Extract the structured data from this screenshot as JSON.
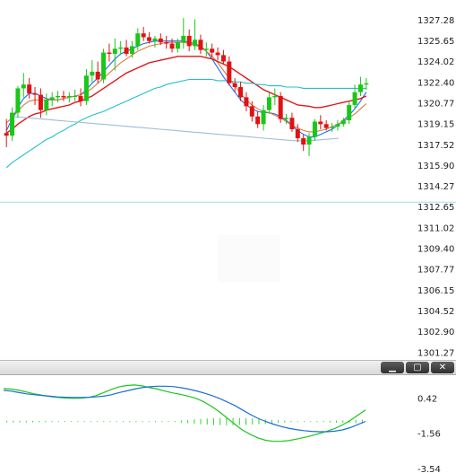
{
  "chart_data": [
    {
      "type": "candlestick",
      "title": "",
      "y_ticks": [
        "1327.28",
        "1325.65",
        "1324.02",
        "1322.40",
        "1320.77",
        "1319.15",
        "1317.52",
        "1315.90",
        "1314.27",
        "1312.65",
        "1311.02",
        "1309.40",
        "1307.77",
        "1306.15",
        "1304.52",
        "1302.90",
        "1301.27"
      ],
      "ylim": [
        1300.8,
        1328.6
      ],
      "reference_line": 1313.0,
      "candles": [
        [
          1318.4,
          1319.5,
          1317.3,
          1318.2
        ],
        [
          1318.2,
          1320.4,
          1317.8,
          1320.0
        ],
        [
          1320.0,
          1322.1,
          1319.6,
          1321.9
        ],
        [
          1321.9,
          1323.1,
          1321.2,
          1322.2
        ],
        [
          1322.2,
          1322.7,
          1321.1,
          1321.5
        ],
        [
          1321.5,
          1322.0,
          1320.6,
          1321.4
        ],
        [
          1321.4,
          1321.9,
          1319.6,
          1320.2
        ],
        [
          1320.2,
          1321.5,
          1319.8,
          1321.0
        ],
        [
          1321.0,
          1321.6,
          1320.5,
          1321.2
        ],
        [
          1321.2,
          1321.7,
          1320.8,
          1321.3
        ],
        [
          1321.3,
          1321.7,
          1320.9,
          1321.2
        ],
        [
          1321.2,
          1321.6,
          1320.8,
          1321.3
        ],
        [
          1321.3,
          1321.8,
          1320.9,
          1321.3
        ],
        [
          1321.3,
          1321.9,
          1320.5,
          1320.9
        ],
        [
          1320.9,
          1323.4,
          1320.6,
          1322.9
        ],
        [
          1322.9,
          1324.1,
          1322.4,
          1323.2
        ],
        [
          1323.2,
          1324.0,
          1322.3,
          1322.6
        ],
        [
          1322.6,
          1325.0,
          1322.3,
          1324.7
        ],
        [
          1324.7,
          1325.4,
          1324.0,
          1324.6
        ],
        [
          1324.6,
          1325.8,
          1323.3,
          1325.0
        ],
        [
          1325.0,
          1325.6,
          1324.5,
          1325.1
        ],
        [
          1325.1,
          1325.7,
          1324.4,
          1324.6
        ],
        [
          1324.6,
          1325.6,
          1324.3,
          1325.2
        ],
        [
          1325.2,
          1326.6,
          1324.9,
          1326.2
        ],
        [
          1326.2,
          1326.7,
          1325.6,
          1325.9
        ],
        [
          1325.9,
          1326.3,
          1325.4,
          1325.6
        ],
        [
          1325.6,
          1326.0,
          1325.1,
          1325.8
        ],
        [
          1325.8,
          1326.2,
          1325.3,
          1325.5
        ],
        [
          1325.5,
          1326.0,
          1325.0,
          1325.4
        ],
        [
          1325.4,
          1325.8,
          1324.7,
          1325.0
        ],
        [
          1325.0,
          1325.8,
          1324.7,
          1325.5
        ],
        [
          1325.5,
          1327.4,
          1325.0,
          1326.0
        ],
        [
          1326.0,
          1326.5,
          1324.8,
          1325.2
        ],
        [
          1325.2,
          1327.3,
          1324.9,
          1325.7
        ],
        [
          1325.7,
          1326.1,
          1324.6,
          1324.9
        ],
        [
          1324.9,
          1325.5,
          1324.4,
          1325.0
        ],
        [
          1325.0,
          1325.4,
          1324.3,
          1324.7
        ],
        [
          1324.7,
          1325.1,
          1324.1,
          1324.5
        ],
        [
          1324.5,
          1324.9,
          1323.8,
          1324.0
        ],
        [
          1324.0,
          1324.4,
          1322.1,
          1322.3
        ],
        [
          1322.3,
          1322.7,
          1321.6,
          1322.0
        ],
        [
          1322.0,
          1322.4,
          1320.9,
          1321.2
        ],
        [
          1321.2,
          1321.6,
          1320.1,
          1320.5
        ],
        [
          1320.5,
          1320.9,
          1319.3,
          1319.7
        ],
        [
          1319.7,
          1320.1,
          1318.8,
          1319.1
        ],
        [
          1319.1,
          1320.6,
          1318.6,
          1320.2
        ],
        [
          1320.2,
          1321.6,
          1319.9,
          1321.2
        ],
        [
          1321.2,
          1321.9,
          1320.6,
          1321.3
        ],
        [
          1321.3,
          1321.6,
          1319.2,
          1319.5
        ],
        [
          1319.5,
          1319.9,
          1319.1,
          1319.6
        ],
        [
          1319.6,
          1320.0,
          1318.5,
          1318.7
        ],
        [
          1318.7,
          1319.1,
          1317.7,
          1318.0
        ],
        [
          1318.0,
          1318.3,
          1317.0,
          1317.5
        ],
        [
          1317.5,
          1318.4,
          1316.6,
          1318.1
        ],
        [
          1318.1,
          1319.5,
          1317.8,
          1319.3
        ],
        [
          1319.3,
          1319.8,
          1318.7,
          1319.1
        ],
        [
          1319.1,
          1319.4,
          1318.6,
          1318.8
        ],
        [
          1318.8,
          1319.2,
          1318.5,
          1318.9
        ],
        [
          1318.9,
          1319.4,
          1318.6,
          1319.1
        ],
        [
          1319.1,
          1319.6,
          1318.9,
          1319.4
        ],
        [
          1319.4,
          1320.9,
          1319.1,
          1320.6
        ],
        [
          1320.6,
          1322.2,
          1320.3,
          1321.6
        ],
        [
          1321.6,
          1322.8,
          1321.3,
          1322.2
        ],
        [
          1322.2,
          1322.7,
          1321.8,
          1322.3
        ]
      ],
      "ma_series": [
        {
          "color": "#1a6cff",
          "values": [
            1318.6,
            1319.5,
            1320.4,
            1321.1,
            1321.5,
            1321.5,
            1321.3,
            1321.1,
            1321.0,
            1321.0,
            1321.1,
            1321.2,
            1321.3,
            1321.4,
            1321.8,
            1322.3,
            1322.7,
            1323.2,
            1323.7,
            1324.2,
            1324.6,
            1324.8,
            1325.0,
            1325.2,
            1325.4,
            1325.5,
            1325.6,
            1325.6,
            1325.6,
            1325.6,
            1325.6,
            1325.6,
            1325.5,
            1325.4,
            1325.2,
            1324.8,
            1324.2,
            1323.5,
            1322.8,
            1322.2,
            1321.6,
            1321.0,
            1320.6,
            1320.3,
            1320.1,
            1320.0,
            1320.0,
            1319.9,
            1319.7,
            1319.4,
            1319.0,
            1318.6,
            1318.3,
            1318.1,
            1318.1,
            1318.3,
            1318.5,
            1318.7,
            1319.0,
            1319.4,
            1319.8,
            1320.3,
            1320.9,
            1321.6
          ]
        },
        {
          "color": "#e07a3c",
          "values": [
            1319.2,
            1319.6,
            1320.1,
            1320.6,
            1320.9,
            1321.0,
            1321.0,
            1321.0,
            1321.0,
            1321.0,
            1321.1,
            1321.2,
            1321.3,
            1321.4,
            1321.6,
            1321.9,
            1322.3,
            1322.7,
            1323.1,
            1323.5,
            1323.9,
            1324.2,
            1324.5,
            1324.8,
            1325.0,
            1325.2,
            1325.3,
            1325.4,
            1325.5,
            1325.5,
            1325.5,
            1325.5,
            1325.4,
            1325.3,
            1325.1,
            1324.8,
            1324.4,
            1323.9,
            1323.3,
            1322.7,
            1322.1,
            1321.5,
            1321.0,
            1320.6,
            1320.3,
            1320.1,
            1320.0,
            1319.8,
            1319.6,
            1319.3,
            1319.0,
            1318.8,
            1318.6,
            1318.5,
            1318.5,
            1318.6,
            1318.7,
            1318.9,
            1319.1,
            1319.3,
            1319.6,
            1319.9,
            1320.3,
            1320.7
          ]
        },
        {
          "color": "#e01818",
          "values": [
            1318.4,
            1318.7,
            1319.1,
            1319.4,
            1319.7,
            1319.9,
            1320.0,
            1320.2,
            1320.3,
            1320.4,
            1320.6,
            1320.8,
            1320.9,
            1321.1,
            1321.3,
            1321.6,
            1321.9,
            1322.2,
            1322.5,
            1322.8,
            1323.1,
            1323.3,
            1323.5,
            1323.7,
            1323.9,
            1324.0,
            1324.1,
            1324.2,
            1324.3,
            1324.4,
            1324.4,
            1324.4,
            1324.4,
            1324.3,
            1324.2,
            1324.0,
            1323.8,
            1323.6,
            1323.3,
            1323.0,
            1322.7,
            1322.4,
            1322.1,
            1321.8,
            1321.6,
            1321.4,
            1321.2,
            1321.0,
            1320.8,
            1320.6,
            1320.5,
            1320.4,
            1320.4,
            1320.5,
            1320.6,
            1320.7,
            1320.8,
            1320.9,
            1321.0,
            1321.1,
            1321.3
          ]
        },
        {
          "color": "#22bfcf",
          "values": [
            1315.7,
            1316.1,
            1316.4,
            1316.7,
            1317.0,
            1317.3,
            1317.6,
            1317.9,
            1318.1,
            1318.4,
            1318.6,
            1318.9,
            1319.1,
            1319.4,
            1319.6,
            1319.8,
            1320.1,
            1320.3,
            1320.5,
            1320.7,
            1320.9,
            1321.1,
            1321.3,
            1321.5,
            1321.7,
            1321.9,
            1322.0,
            1322.2,
            1322.3,
            1322.4,
            1322.5,
            1322.6,
            1322.6,
            1322.6,
            1322.6,
            1322.6,
            1322.5,
            1322.5,
            1322.5,
            1322.4,
            1322.4,
            1322.3,
            1322.3,
            1322.2,
            1322.2,
            1322.1,
            1322.1,
            1322.0,
            1322.0,
            1322.0,
            1321.9,
            1321.9,
            1321.9,
            1321.9,
            1321.9,
            1321.9,
            1321.9,
            1321.9,
            1321.9,
            1321.9,
            1321.9,
            1321.9
          ]
        },
        {
          "color": "#9bbfd6",
          "values": [
            1319.7,
            1319.6,
            1319.5,
            1319.4,
            1319.3,
            1319.2,
            1319.1,
            1319.0,
            1318.9,
            1318.8,
            1318.7,
            1318.6,
            1318.5,
            1318.4,
            1318.3,
            1318.2,
            1318.1,
            1318.0,
            1317.9,
            1317.8,
            1317.8,
            1317.9,
            1318.0
          ]
        }
      ]
    },
    {
      "type": "macd",
      "y_ticks": [
        "0.42",
        "-1.56",
        "-3.54"
      ],
      "ylim": [
        -3.7,
        1.6
      ],
      "macd_line": [
        0.85,
        0.8,
        0.72,
        0.65,
        0.6,
        0.56,
        0.52,
        0.48,
        0.46,
        0.45,
        0.45,
        0.46,
        0.48,
        0.52,
        0.6,
        0.72,
        0.82,
        0.92,
        1.0,
        1.05,
        1.08,
        1.08,
        1.06,
        1.0,
        0.92,
        0.82,
        0.7,
        0.56,
        0.4,
        0.2,
        0.0,
        -0.25,
        -0.5,
        -0.72,
        -0.9,
        -1.05,
        -1.18,
        -1.28,
        -1.36,
        -1.42,
        -1.46,
        -1.48,
        -1.48,
        -1.45,
        -1.38,
        -1.25,
        -1.08,
        -0.9
      ],
      "signal_line": [
        0.95,
        0.92,
        0.85,
        0.75,
        0.65,
        0.57,
        0.5,
        0.45,
        0.42,
        0.4,
        0.41,
        0.45,
        0.55,
        0.72,
        0.9,
        1.05,
        1.12,
        1.15,
        1.1,
        1.0,
        0.92,
        0.8,
        0.7,
        0.62,
        0.52,
        0.4,
        0.2,
        -0.05,
        -0.35,
        -0.7,
        -1.05,
        -1.38,
        -1.62,
        -1.82,
        -1.96,
        -2.02,
        -2.02,
        -1.98,
        -1.9,
        -1.8,
        -1.7,
        -1.58,
        -1.45,
        -1.3,
        -1.1,
        -0.85,
        -0.55,
        -0.25
      ],
      "histogram": [
        -0.22,
        -0.24,
        -0.24,
        -0.22,
        -0.2,
        -0.18,
        -0.16,
        -0.14,
        -0.12,
        -0.1,
        -0.08,
        -0.06,
        -0.04,
        0.0,
        0.04,
        0.08,
        0.1,
        0.12,
        0.14,
        0.15,
        0.15,
        0.14,
        0.12,
        0.08,
        0.02,
        -0.05,
        -0.15,
        -0.3,
        -0.45,
        -0.6,
        -0.75,
        -0.85,
        -0.95,
        -1.0,
        -1.02,
        -1.02,
        -0.98,
        -0.92,
        -0.84,
        -0.74,
        -0.62,
        -0.5,
        -0.38,
        -0.26,
        -0.16,
        -0.08,
        -0.02,
        0.04,
        0.1,
        0.16,
        0.22,
        0.28,
        0.34,
        0.4,
        0.46,
        0.52
      ]
    }
  ],
  "window_controls": {
    "minimize_glyph": "▁",
    "restore_glyph": "▢",
    "close_glyph": "✕"
  }
}
